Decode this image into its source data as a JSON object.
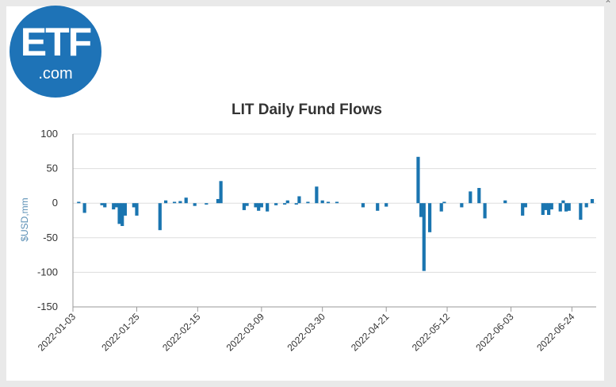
{
  "page": {
    "scroll_caret_icon": "chevron-up-icon"
  },
  "logo": {
    "main_text": "ETF",
    "sub_text": ".com",
    "color": "#1e73b7"
  },
  "chart_data": {
    "type": "bar",
    "title": "LIT Daily Fund Flows",
    "ylabel": "$USD,mm",
    "xlabel": "",
    "ylim": [
      -150,
      100
    ],
    "yticks": [
      100,
      50,
      0,
      -50,
      -100,
      -150
    ],
    "x_start": "2022-01-03",
    "x_end": "2022-07-01",
    "xticks": [
      "2022-01-03",
      "2022-01-25",
      "2022-02-15",
      "2022-03-09",
      "2022-03-30",
      "2022-04-21",
      "2022-05-12",
      "2022-06-03",
      "2022-06-24"
    ],
    "bar_color": "#1a75b0",
    "grid": true,
    "series": [
      {
        "name": "LIT",
        "points": [
          {
            "x": "2022-01-05",
            "value": 2
          },
          {
            "x": "2022-01-07",
            "value": -14
          },
          {
            "x": "2022-01-13",
            "value": -3
          },
          {
            "x": "2022-01-14",
            "value": -6
          },
          {
            "x": "2022-01-17",
            "value": -9
          },
          {
            "x": "2022-01-18",
            "value": -6
          },
          {
            "x": "2022-01-19",
            "value": -30
          },
          {
            "x": "2022-01-20",
            "value": -33
          },
          {
            "x": "2022-01-21",
            "value": -18
          },
          {
            "x": "2022-01-24",
            "value": -6
          },
          {
            "x": "2022-01-25",
            "value": -18
          },
          {
            "x": "2022-02-02",
            "value": -39
          },
          {
            "x": "2022-02-04",
            "value": 4
          },
          {
            "x": "2022-02-07",
            "value": 2
          },
          {
            "x": "2022-02-09",
            "value": 3
          },
          {
            "x": "2022-02-11",
            "value": 8
          },
          {
            "x": "2022-02-14",
            "value": -4
          },
          {
            "x": "2022-02-18",
            "value": -2
          },
          {
            "x": "2022-02-22",
            "value": 6
          },
          {
            "x": "2022-02-23",
            "value": 32
          },
          {
            "x": "2022-03-03",
            "value": -10
          },
          {
            "x": "2022-03-04",
            "value": -4
          },
          {
            "x": "2022-03-07",
            "value": -6
          },
          {
            "x": "2022-03-08",
            "value": -11
          },
          {
            "x": "2022-03-09",
            "value": -6
          },
          {
            "x": "2022-03-11",
            "value": -12
          },
          {
            "x": "2022-03-14",
            "value": -3
          },
          {
            "x": "2022-03-17",
            "value": -2
          },
          {
            "x": "2022-03-18",
            "value": 4
          },
          {
            "x": "2022-03-21",
            "value": -2
          },
          {
            "x": "2022-03-22",
            "value": 10
          },
          {
            "x": "2022-03-25",
            "value": 2
          },
          {
            "x": "2022-03-28",
            "value": 24
          },
          {
            "x": "2022-03-30",
            "value": 4
          },
          {
            "x": "2022-04-01",
            "value": 2
          },
          {
            "x": "2022-04-04",
            "value": 2
          },
          {
            "x": "2022-04-13",
            "value": -6
          },
          {
            "x": "2022-04-18",
            "value": -11
          },
          {
            "x": "2022-04-21",
            "value": -5
          },
          {
            "x": "2022-05-02",
            "value": 67
          },
          {
            "x": "2022-05-03",
            "value": -20
          },
          {
            "x": "2022-05-04",
            "value": -98
          },
          {
            "x": "2022-05-06",
            "value": -42
          },
          {
            "x": "2022-05-10",
            "value": -12
          },
          {
            "x": "2022-05-11",
            "value": 2
          },
          {
            "x": "2022-05-17",
            "value": -6
          },
          {
            "x": "2022-05-20",
            "value": 17
          },
          {
            "x": "2022-05-23",
            "value": 22
          },
          {
            "x": "2022-05-25",
            "value": -22
          },
          {
            "x": "2022-06-01",
            "value": 4
          },
          {
            "x": "2022-06-07",
            "value": -18
          },
          {
            "x": "2022-06-08",
            "value": -6
          },
          {
            "x": "2022-06-14",
            "value": -17
          },
          {
            "x": "2022-06-15",
            "value": -10
          },
          {
            "x": "2022-06-16",
            "value": -17
          },
          {
            "x": "2022-06-17",
            "value": -9
          },
          {
            "x": "2022-06-20",
            "value": -12
          },
          {
            "x": "2022-06-21",
            "value": 4
          },
          {
            "x": "2022-06-22",
            "value": -12
          },
          {
            "x": "2022-06-23",
            "value": -11
          },
          {
            "x": "2022-06-27",
            "value": -24
          },
          {
            "x": "2022-06-29",
            "value": -6
          },
          {
            "x": "2022-07-01",
            "value": 6
          }
        ]
      }
    ]
  }
}
